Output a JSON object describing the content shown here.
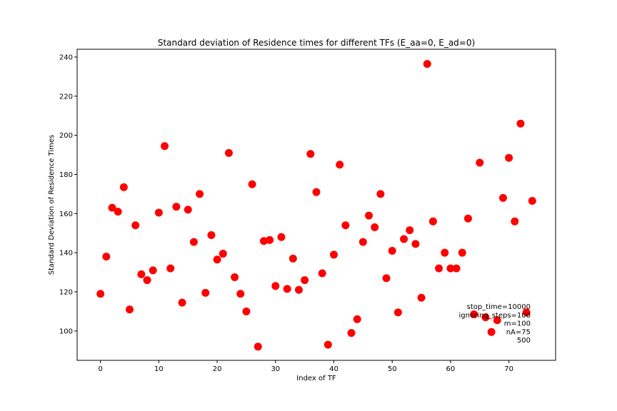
{
  "chart_data": {
    "type": "scatter",
    "title": "Standard deviation of Residence times for different TFs (E_aa=0, E_ad=0)",
    "xlabel": "Index of TF",
    "ylabel": "Standard Deviation of Residence Times",
    "xlim": [
      -4,
      78
    ],
    "ylim": [
      85,
      244
    ],
    "xticks": [
      0,
      10,
      20,
      30,
      40,
      50,
      60,
      70
    ],
    "yticks": [
      100,
      120,
      140,
      160,
      180,
      200,
      220,
      240
    ],
    "marker_color": "#ff0000",
    "grid": false,
    "series": [
      {
        "x": [
          0,
          1,
          2,
          3,
          4,
          5,
          6,
          7,
          8,
          9,
          10,
          11,
          12,
          13,
          14,
          15,
          16,
          17,
          18,
          19,
          20,
          21,
          22,
          23,
          24,
          25,
          26,
          27,
          28,
          29,
          30,
          31,
          32,
          33,
          34,
          35,
          36,
          37,
          38,
          39,
          40,
          41,
          42,
          43,
          44,
          45,
          46,
          47,
          48,
          49,
          50,
          51,
          52,
          53,
          54,
          55,
          56,
          57,
          58,
          59,
          60,
          61,
          62,
          63,
          64,
          65,
          66,
          67,
          68,
          69,
          70,
          71,
          72,
          73,
          74
        ],
        "y": [
          119,
          138,
          163,
          161,
          173.5,
          111,
          154,
          129,
          126,
          131,
          160.5,
          194.5,
          132,
          163.5,
          114.5,
          162,
          145.5,
          170,
          119.5,
          149,
          136.5,
          139.5,
          191,
          127.5,
          119,
          110,
          175,
          92,
          146,
          146.5,
          123,
          148,
          121.5,
          137,
          121,
          126,
          190.5,
          171,
          129.5,
          93,
          139,
          185,
          154,
          99,
          106,
          145.5,
          159,
          153,
          170,
          127,
          141,
          109.5,
          147,
          151.5,
          144.5,
          117,
          236.5,
          156,
          132,
          140,
          132,
          132,
          140,
          157.5,
          108.5,
          186,
          107,
          99.5,
          105.5,
          168,
          188.5,
          156,
          206,
          109.5,
          166.5
        ]
      }
    ],
    "annotation_lines": [
      "stop_time=10000",
      "ignoring_steps=100",
      "m=100",
      "nA=75",
      "500"
    ]
  }
}
